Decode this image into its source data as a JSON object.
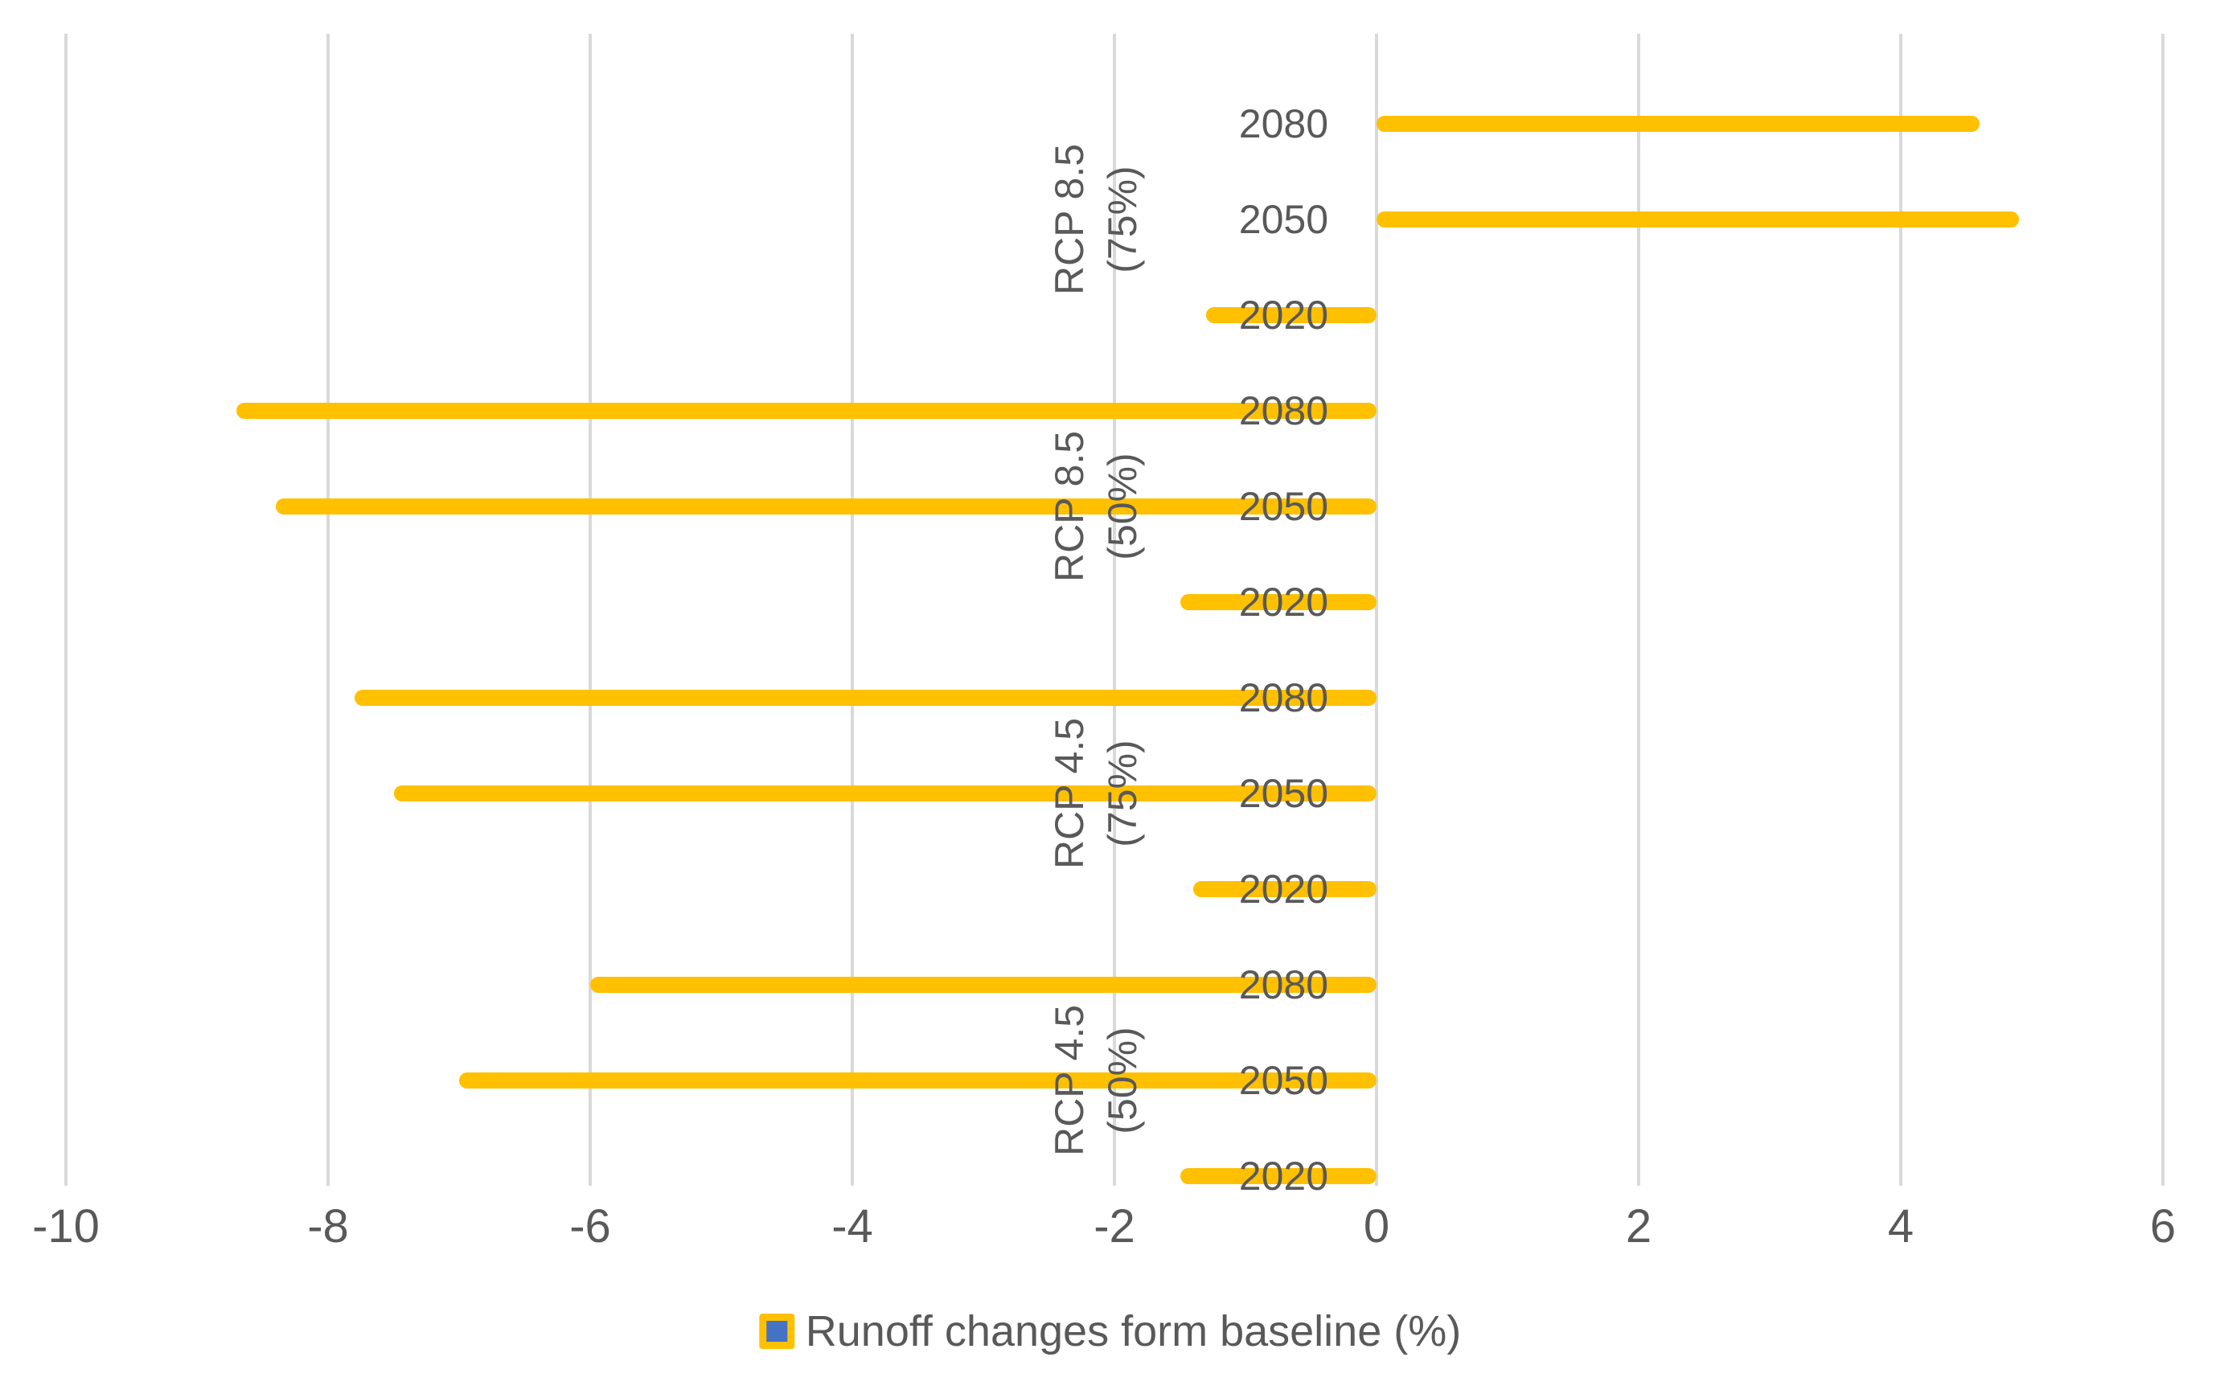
{
  "chart_data": {
    "type": "bar",
    "orientation": "horizontal",
    "title": "",
    "xlabel": "",
    "ylabel": "",
    "legend_label": "Runoff changes form baseline (%)",
    "legend_position": "bottom-center",
    "xlim": [
      -10,
      6
    ],
    "xticks": [
      -10,
      -8,
      -6,
      -4,
      -2,
      0,
      2,
      4,
      6
    ],
    "grid": "vertical-only",
    "bar_color": "#FFC000",
    "gridline_color": "#D9D9D9",
    "text_color": "#595959",
    "legend_marker_fill": "#4472C4",
    "legend_marker_border": "#FFC000",
    "groups": [
      {
        "label_line1": "RCP 8.5",
        "label_line2": "(75%)",
        "bars": [
          {
            "year": "2080",
            "value": 4.6
          },
          {
            "year": "2050",
            "value": 4.9
          },
          {
            "year": "2020",
            "value": -1.3
          }
        ]
      },
      {
        "label_line1": "RCP 8.5",
        "label_line2": "(50%)",
        "bars": [
          {
            "year": "2080",
            "value": -8.7
          },
          {
            "year": "2050",
            "value": -8.4
          },
          {
            "year": "2020",
            "value": -1.5
          }
        ]
      },
      {
        "label_line1": "RCP 4.5",
        "label_line2": "(75%)",
        "bars": [
          {
            "year": "2080",
            "value": -7.8
          },
          {
            "year": "2050",
            "value": -7.5
          },
          {
            "year": "2020",
            "value": -1.4
          }
        ]
      },
      {
        "label_line1": "RCP 4.5",
        "label_line2": "(50%)",
        "bars": [
          {
            "year": "2080",
            "value": -6.0
          },
          {
            "year": "2050",
            "value": -7.0
          },
          {
            "year": "2020",
            "value": -1.5
          }
        ]
      }
    ]
  }
}
